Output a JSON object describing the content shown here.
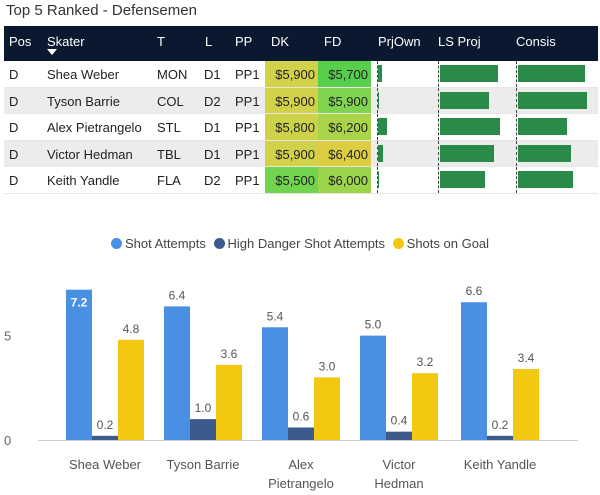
{
  "title": "Top 5 Ranked - Defensemen",
  "table": {
    "headers": [
      "Pos",
      "Skater",
      "T",
      "L",
      "PP",
      "DK",
      "FD",
      "PrjOwn",
      "LS Proj",
      "Consis"
    ],
    "rows": [
      {
        "pos": "D",
        "skater": "Shea Weber",
        "team": "MON",
        "line": "D1",
        "pp": "PP1",
        "dk": "$5,900",
        "fd": "$5,700",
        "prjown": 0.18,
        "lsproj": 0.83,
        "consis": 0.96
      },
      {
        "pos": "D",
        "skater": "Tyson Barrie",
        "team": "COL",
        "line": "D2",
        "pp": "PP1",
        "dk": "$5,900",
        "fd": "$5,900",
        "prjown": 0.05,
        "lsproj": 0.7,
        "consis": 0.98
      },
      {
        "pos": "D",
        "skater": "Alex Pietrangelo",
        "team": "STL",
        "line": "D1",
        "pp": "PP1",
        "dk": "$5,800",
        "fd": "$6,200",
        "prjown": 0.4,
        "lsproj": 0.86,
        "consis": 0.7
      },
      {
        "pos": "D",
        "skater": "Victor Hedman",
        "team": "TBL",
        "line": "D1",
        "pp": "PP1",
        "dk": "$5,900",
        "fd": "$6,400",
        "prjown": 0.21,
        "lsproj": 0.77,
        "consis": 0.76
      },
      {
        "pos": "D",
        "skater": "Keith Yandle",
        "team": "FLA",
        "line": "D2",
        "pp": "PP1",
        "dk": "$5,500",
        "fd": "$6,000",
        "prjown": 0.05,
        "lsproj": 0.64,
        "consis": 0.78
      }
    ],
    "colors": {
      "dk": [
        "#d2d24a",
        "#d2d24a",
        "#cdd24a",
        "#d2d24a",
        "#72d44e"
      ],
      "fd": [
        "#58cf4c",
        "#7fd34e",
        "#a9d44a",
        "#dccd42",
        "#9cd44c"
      ]
    }
  },
  "chart_data": {
    "type": "bar",
    "categories": [
      "Shea Weber",
      "Tyson Barrie",
      "Alex\nPietrangelo",
      "Victor\nHedman",
      "Keith Yandle"
    ],
    "series": [
      {
        "name": "Shot Attempts",
        "values": [
          7.2,
          6.4,
          5.4,
          5.0,
          6.6
        ],
        "color": "#4a90e2"
      },
      {
        "name": "High Danger Shot Attempts",
        "values": [
          0.2,
          1.0,
          0.6,
          0.4,
          0.2
        ],
        "color": "#3d5a8c"
      },
      {
        "name": "Shots on Goal",
        "values": [
          4.8,
          3.6,
          3.0,
          3.2,
          3.4
        ],
        "color": "#f2c811"
      }
    ],
    "y_ticks": [
      "0",
      "5"
    ],
    "ylim": [
      0,
      8
    ]
  }
}
